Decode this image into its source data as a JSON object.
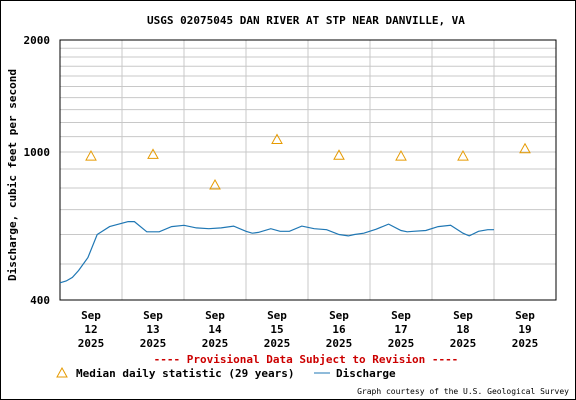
{
  "chart_data": {
    "type": "line",
    "title": "USGS 02075045 DAN RIVER AT STP NEAR DANVILLE, VA",
    "ylabel": "Discharge, cubic feet per second",
    "y_scale": "log",
    "ylim": [
      400,
      2000
    ],
    "y_tick_labels": [
      "400",
      "1000",
      "2000"
    ],
    "y_ticks": [
      400,
      1000,
      2000
    ],
    "x_categories": [
      {
        "month": "Sep",
        "day": "12",
        "year": "2025"
      },
      {
        "month": "Sep",
        "day": "13",
        "year": "2025"
      },
      {
        "month": "Sep",
        "day": "14",
        "year": "2025"
      },
      {
        "month": "Sep",
        "day": "15",
        "year": "2025"
      },
      {
        "month": "Sep",
        "day": "16",
        "year": "2025"
      },
      {
        "month": "Sep",
        "day": "17",
        "year": "2025"
      },
      {
        "month": "Sep",
        "day": "18",
        "year": "2025"
      },
      {
        "month": "Sep",
        "day": "19",
        "year": "2025"
      }
    ],
    "provisional_note": "---- Provisional Data Subject to Revision ----",
    "series": [
      {
        "name": "Discharge",
        "color": "#1f77b4",
        "x": [
          0.0,
          0.1,
          0.2,
          0.3,
          0.45,
          0.6,
          0.8,
          0.95,
          1.1,
          1.2,
          1.4,
          1.6,
          1.8,
          2.0,
          2.2,
          2.4,
          2.6,
          2.8,
          3.0,
          3.1,
          3.2,
          3.4,
          3.55,
          3.7,
          3.9,
          4.1,
          4.3,
          4.5,
          4.65,
          4.75,
          4.9,
          5.1,
          5.3,
          5.5,
          5.6,
          5.7,
          5.9,
          6.1,
          6.3,
          6.5,
          6.6,
          6.75,
          6.9,
          7.0
        ],
        "values": [
          445,
          450,
          460,
          480,
          520,
          600,
          630,
          640,
          650,
          650,
          610,
          610,
          630,
          635,
          625,
          622,
          625,
          632,
          612,
          605,
          608,
          622,
          612,
          612,
          632,
          622,
          618,
          600,
          595,
          600,
          605,
          620,
          640,
          615,
          610,
          612,
          615,
          630,
          635,
          605,
          595,
          612,
          618,
          618
        ]
      }
    ],
    "markers": {
      "name": "Median daily statistic (29 years)",
      "color": "#e69a00",
      "x": [
        0.0,
        1.0,
        2.0,
        3.0,
        4.0,
        5.0,
        6.0,
        7.0
      ],
      "values": [
        975,
        985,
        815,
        1080,
        980,
        975,
        975,
        1020
      ]
    },
    "grid": true
  },
  "legend": {
    "median_label": "Median daily statistic (29 years)",
    "discharge_label": "Discharge"
  },
  "credit": "Graph courtesy of the U.S. Geological Survey"
}
